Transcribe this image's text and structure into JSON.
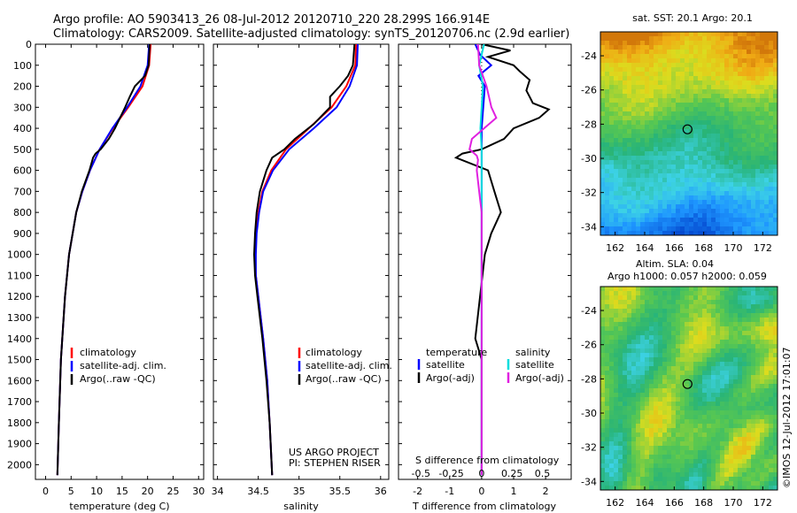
{
  "title_line1": "Argo profile: AO 5903413_26 08-Jul-2012 20120710_220 28.299S 166.914E",
  "title_line2": "Climatology: CARS2009. Satellite-adjusted climatology: synTS_20120706.nc (2.9d earlier)",
  "depth_ticks": [
    "0",
    "100",
    "200",
    "300",
    "400",
    "500",
    "600",
    "700",
    "800",
    "900",
    "1000",
    "1100",
    "1200",
    "1300",
    "1400",
    "1500",
    "1600",
    "1700",
    "1800",
    "1900",
    "2000"
  ],
  "colors": {
    "climatology": "#ff0000",
    "satellite": "#0000ff",
    "argo": "#000000",
    "satellite_s": "#00dddd",
    "argo_s": "#e020e0"
  },
  "chart_data": [
    {
      "type": "line",
      "xlabel": "temperature (deg C)",
      "xticks": [
        "0",
        "5",
        "10",
        "15",
        "20",
        "25",
        "30"
      ],
      "xlim": [
        -2,
        31
      ],
      "ylim": [
        2070,
        0
      ],
      "legend": [
        "climatology",
        "satellite-adj. clim.",
        "Argo(..raw -QC)"
      ],
      "series": [
        {
          "name": "climatology",
          "depth": [
            0,
            100,
            200,
            300,
            400,
            500,
            600,
            700,
            800,
            1000,
            1200,
            1500,
            1800,
            2050
          ],
          "values": [
            20.6,
            20.3,
            19.0,
            16.2,
            13.2,
            10.6,
            8.7,
            7.2,
            6.0,
            4.6,
            3.8,
            3.0,
            2.6,
            2.3
          ]
        },
        {
          "name": "satellite-adj. clim.",
          "depth": [
            0,
            100,
            200,
            300,
            400,
            500,
            600,
            700,
            800,
            1000,
            1200,
            1500,
            1800,
            2050
          ],
          "values": [
            20.3,
            20.0,
            18.6,
            16.0,
            13.1,
            10.6,
            8.7,
            7.2,
            6.0,
            4.6,
            3.8,
            3.0,
            2.6,
            2.3
          ]
        },
        {
          "name": "Argo(..raw -QC)",
          "depth": [
            0,
            100,
            150,
            200,
            250,
            300,
            400,
            450,
            500,
            520,
            540,
            600,
            700,
            800,
            1000,
            1200,
            1500,
            1800,
            2050
          ],
          "values": [
            20.4,
            20.2,
            19.5,
            17.5,
            16.5,
            15.6,
            13.6,
            12.4,
            10.8,
            9.8,
            9.3,
            8.6,
            7.1,
            6.0,
            4.6,
            3.8,
            3.0,
            2.6,
            2.3
          ]
        }
      ]
    },
    {
      "type": "line",
      "xlabel": "salinity",
      "xticks": [
        "34",
        "34.5",
        "35",
        "35.5",
        "36"
      ],
      "xlim": [
        33.95,
        36.1
      ],
      "ylim": [
        2070,
        0
      ],
      "legend": [
        "climatology",
        "satellite-adj. clim.",
        "Argo(..raw -QC)"
      ],
      "series": [
        {
          "name": "climatology",
          "depth": [
            0,
            100,
            200,
            300,
            400,
            500,
            600,
            700,
            800,
            900,
            1000,
            1100,
            1200,
            1400,
            1600,
            1800,
            2050
          ],
          "values": [
            35.7,
            35.69,
            35.58,
            35.4,
            35.12,
            34.84,
            34.66,
            34.55,
            34.5,
            34.47,
            34.46,
            34.47,
            34.5,
            34.56,
            34.61,
            34.64,
            34.67
          ]
        },
        {
          "name": "satellite-adj. clim.",
          "depth": [
            0,
            100,
            200,
            300,
            400,
            500,
            600,
            700,
            800,
            900,
            1000,
            1100,
            1200,
            1400,
            1600,
            1800,
            2050
          ],
          "values": [
            35.72,
            35.71,
            35.62,
            35.46,
            35.18,
            34.88,
            34.68,
            34.56,
            34.51,
            34.48,
            34.47,
            34.47,
            34.5,
            34.56,
            34.61,
            34.64,
            34.67
          ]
        },
        {
          "name": "Argo(..raw -QC)",
          "depth": [
            0,
            100,
            150,
            200,
            250,
            300,
            380,
            450,
            500,
            540,
            600,
            700,
            800,
            900,
            1000,
            1100,
            1200,
            1400,
            1600,
            1800,
            2050
          ],
          "values": [
            35.68,
            35.66,
            35.6,
            35.5,
            35.38,
            35.38,
            35.18,
            34.95,
            34.82,
            34.67,
            34.6,
            34.52,
            34.48,
            34.46,
            34.45,
            34.46,
            34.49,
            34.55,
            34.6,
            34.64,
            34.67
          ]
        }
      ]
    },
    {
      "type": "line",
      "xlabel": "T difference from climatology",
      "xlabel_top": "S difference from climatology",
      "xticks": [
        "-2",
        "-1",
        "0",
        "1",
        "2"
      ],
      "sticks": [
        "-0.5",
        "-0.25",
        "0",
        "0.25",
        "0.5"
      ],
      "xlim": [
        -2.6,
        2.8
      ],
      "ylim": [
        2070,
        0
      ],
      "legend_t_title": "temperature",
      "legend_s_title": "salinity",
      "legend": [
        "satellite",
        "Argo(-adj)",
        "satellite",
        "Argo(-adj)"
      ],
      "series": [
        {
          "name": "satellite",
          "depth": [
            0,
            50,
            100,
            150,
            200,
            300,
            400,
            500,
            700,
            1000,
            1500,
            2050
          ],
          "values": [
            -0.2,
            -0.05,
            0.3,
            -0.1,
            0.1,
            0.05,
            0.0,
            0.0,
            0.0,
            0.0,
            0.0,
            0.0
          ]
        },
        {
          "name": "Argo(-adj)",
          "depth": [
            0,
            30,
            60,
            100,
            130,
            170,
            220,
            250,
            280,
            310,
            350,
            400,
            450,
            500,
            520,
            540,
            600,
            700,
            800,
            900,
            1000,
            1400,
            1500,
            2050
          ],
          "values": [
            0.0,
            0.9,
            0.2,
            1.0,
            1.2,
            1.5,
            1.4,
            1.5,
            1.6,
            2.1,
            1.8,
            1.0,
            0.7,
            0.0,
            -0.6,
            -0.8,
            0.2,
            0.4,
            0.6,
            0.3,
            0.1,
            -0.2,
            0.0,
            0.0
          ]
        },
        {
          "name": "satellite",
          "depth": [
            0,
            100,
            200,
            300,
            400,
            500,
            800,
            1200,
            1600,
            2050
          ],
          "values": [
            0.02,
            -0.02,
            0.01,
            0.0,
            -0.01,
            0.0,
            0.0,
            0.0,
            0.0,
            0.0
          ]
        },
        {
          "name": "Argo(-adj)",
          "depth": [
            0,
            100,
            200,
            300,
            350,
            400,
            450,
            500,
            530,
            550,
            600,
            700,
            800,
            900,
            1000,
            1500,
            2050
          ],
          "values": [
            -0.03,
            -0.02,
            0.04,
            0.08,
            0.12,
            0.02,
            -0.08,
            -0.1,
            -0.04,
            -0.03,
            -0.04,
            -0.02,
            0.0,
            0.0,
            0.0,
            0.0,
            0.0
          ]
        }
      ]
    },
    {
      "type": "heatmap",
      "title": "sat. SST: 20.1  Argo: 20.1",
      "xticks": [
        "162",
        "164",
        "166",
        "168",
        "170",
        "172"
      ],
      "yticks": [
        "-24",
        "-26",
        "-28",
        "-30",
        "-32",
        "-34"
      ],
      "xlim": [
        161,
        173
      ],
      "ylim": [
        -34.5,
        -22.6
      ],
      "marker": [
        166.9,
        -28.3
      ]
    },
    {
      "type": "heatmap",
      "title_line1": "Altim. SLA: 0.04",
      "title_line2": "Argo h1000: 0.057 h2000: 0.059",
      "xticks": [
        "162",
        "164",
        "166",
        "168",
        "170",
        "172"
      ],
      "yticks": [
        "-24",
        "-26",
        "-28",
        "-30",
        "-32",
        "-34"
      ],
      "xlim": [
        161,
        173
      ],
      "ylim": [
        -34.5,
        -22.6
      ],
      "marker": [
        166.9,
        -28.3
      ]
    }
  ],
  "credit_line1": "US ARGO PROJECT",
  "credit_line2": "PI: STEPHEN RISER",
  "side_stamp": "©IMOS 12-Jul-2012 17:01:07"
}
